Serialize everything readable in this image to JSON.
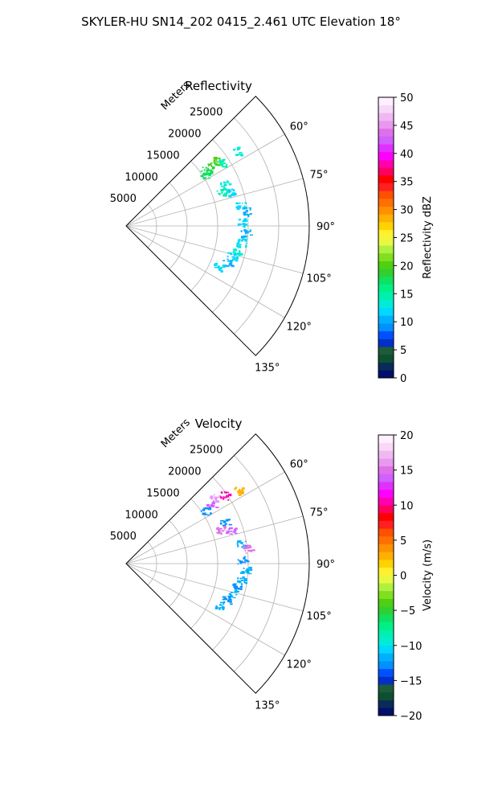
{
  "figure_title": "SKYLER-HU  SN14_202  0415_2.461 UTC Elevation 18°",
  "chart_data": [
    {
      "type": "polar-sector",
      "title": "Reflectivity",
      "radial_label": "Meters",
      "r_ticks": [
        5000,
        10000,
        15000,
        20000,
        25000
      ],
      "r_tick_labels": [
        "5000",
        "10000",
        "15000",
        "20000",
        "25000"
      ],
      "rlim": [
        0,
        30000
      ],
      "theta_ticks": [
        45,
        60,
        75,
        90,
        105,
        120,
        135
      ],
      "theta_tick_labels": [
        "60°",
        "75°",
        "90°",
        "105°",
        "120°",
        "135°"
      ],
      "theta_labeled": [
        60,
        75,
        90,
        105,
        120,
        135
      ],
      "theta_range": [
        45,
        135
      ],
      "grid": true,
      "colorbar": {
        "label": "Reflectivity dBZ",
        "range": [
          0,
          50
        ],
        "ticks": [
          0,
          5,
          10,
          15,
          20,
          25,
          30,
          35,
          40,
          45,
          50
        ],
        "tick_labels": [
          "0",
          "5",
          "10",
          "15",
          "20",
          "25",
          "30",
          "35",
          "40",
          "45",
          "50"
        ],
        "colors": [
          "#00106b",
          "#0a2b5a",
          "#0d5030",
          "#1e5b3a",
          "#0030c8",
          "#0050ff",
          "#0090ff",
          "#00b0ff",
          "#00d8ff",
          "#00ecd8",
          "#00f0b0",
          "#00f088",
          "#10e060",
          "#30d030",
          "#50d010",
          "#80e020",
          "#b0f040",
          "#e8f840",
          "#fff030",
          "#ffd200",
          "#ffb000",
          "#ff9000",
          "#ff7000",
          "#ff5000",
          "#ff2020",
          "#ff0000",
          "#ff0060",
          "#ff00b0",
          "#ff00ff",
          "#e030ff",
          "#d060ff",
          "#e070e8",
          "#e898f0",
          "#f0b8f0",
          "#f8d8f8",
          "#fff0ff"
        ]
      },
      "echoes": [
        {
          "theta": 53.5,
          "r": 18000,
          "value": 20
        },
        {
          "theta": 54.5,
          "r": 17000,
          "value": 19
        },
        {
          "theta": 55.5,
          "r": 16000,
          "value": 18
        },
        {
          "theta": 56.5,
          "r": 15500,
          "value": 17
        },
        {
          "theta": 57.0,
          "r": 19000,
          "value": 14
        },
        {
          "theta": 56.0,
          "r": 22000,
          "value": 13
        },
        {
          "theta": 67.0,
          "r": 17500,
          "value": 13
        },
        {
          "theta": 70.0,
          "r": 16500,
          "value": 14
        },
        {
          "theta": 72.0,
          "r": 18000,
          "value": 12
        },
        {
          "theta": 80.0,
          "r": 19000,
          "value": 12
        },
        {
          "theta": 83.0,
          "r": 20000,
          "value": 11
        },
        {
          "theta": 88.0,
          "r": 19000,
          "value": 12
        },
        {
          "theta": 93.0,
          "r": 19500,
          "value": 11
        },
        {
          "theta": 98.0,
          "r": 19000,
          "value": 12
        },
        {
          "theta": 102.0,
          "r": 18500,
          "value": 13
        },
        {
          "theta": 106.0,
          "r": 18000,
          "value": 12
        },
        {
          "theta": 110.0,
          "r": 17500,
          "value": 11
        },
        {
          "theta": 114.0,
          "r": 16500,
          "value": 12
        }
      ]
    },
    {
      "type": "polar-sector",
      "title": "Velocity",
      "radial_label": "Meters",
      "r_ticks": [
        5000,
        10000,
        15000,
        20000,
        25000
      ],
      "r_tick_labels": [
        "5000",
        "10000",
        "15000",
        "20000",
        "25000"
      ],
      "rlim": [
        0,
        30000
      ],
      "theta_ticks": [
        45,
        60,
        75,
        90,
        105,
        120,
        135
      ],
      "theta_tick_labels": [
        "60°",
        "75°",
        "90°",
        "105°",
        "120°",
        "135°"
      ],
      "theta_labeled": [
        60,
        75,
        90,
        105,
        120,
        135
      ],
      "theta_range": [
        45,
        135
      ],
      "grid": true,
      "colorbar": {
        "label": "Velocity (m/s)",
        "range": [
          -20,
          20
        ],
        "ticks": [
          -20,
          -15,
          -10,
          -5,
          0,
          5,
          10,
          15,
          20
        ],
        "tick_labels": [
          "−20",
          "−15",
          "−10",
          "−5",
          "0",
          "5",
          "10",
          "15",
          "20"
        ],
        "colors": [
          "#00106b",
          "#0a2b5a",
          "#0d5030",
          "#1e5b3a",
          "#0030c8",
          "#0050ff",
          "#0090ff",
          "#00b0ff",
          "#00d8ff",
          "#00ecd8",
          "#00f0b0",
          "#00f088",
          "#10e060",
          "#30d030",
          "#50d010",
          "#80e020",
          "#b0f040",
          "#e8f840",
          "#fff030",
          "#ffd200",
          "#ffb000",
          "#ff9000",
          "#ff7000",
          "#ff5000",
          "#ff2020",
          "#ff0000",
          "#ff0060",
          "#ff00b0",
          "#ff00ff",
          "#e030ff",
          "#d060ff",
          "#e070e8",
          "#e898f0",
          "#f0b8f0",
          "#f8d8f8",
          "#fff0ff"
        ]
      },
      "echoes": [
        {
          "theta": 53.5,
          "r": 18000,
          "value": 16
        },
        {
          "theta": 54.5,
          "r": 17000,
          "value": 14
        },
        {
          "theta": 55.0,
          "r": 19500,
          "value": 10
        },
        {
          "theta": 56.5,
          "r": 15500,
          "value": -13
        },
        {
          "theta": 57.0,
          "r": 22000,
          "value": 3
        },
        {
          "theta": 67.0,
          "r": 17500,
          "value": -13
        },
        {
          "theta": 70.0,
          "r": 16500,
          "value": 15
        },
        {
          "theta": 72.0,
          "r": 18000,
          "value": 14
        },
        {
          "theta": 80.0,
          "r": 19000,
          "value": -12
        },
        {
          "theta": 83.0,
          "r": 20000,
          "value": 15
        },
        {
          "theta": 88.0,
          "r": 19000,
          "value": -13
        },
        {
          "theta": 93.0,
          "r": 19500,
          "value": -12
        },
        {
          "theta": 98.0,
          "r": 19000,
          "value": -12
        },
        {
          "theta": 102.0,
          "r": 18500,
          "value": -13
        },
        {
          "theta": 106.0,
          "r": 18000,
          "value": -12
        },
        {
          "theta": 110.0,
          "r": 17500,
          "value": -13
        },
        {
          "theta": 114.0,
          "r": 16500,
          "value": -12
        }
      ]
    }
  ]
}
